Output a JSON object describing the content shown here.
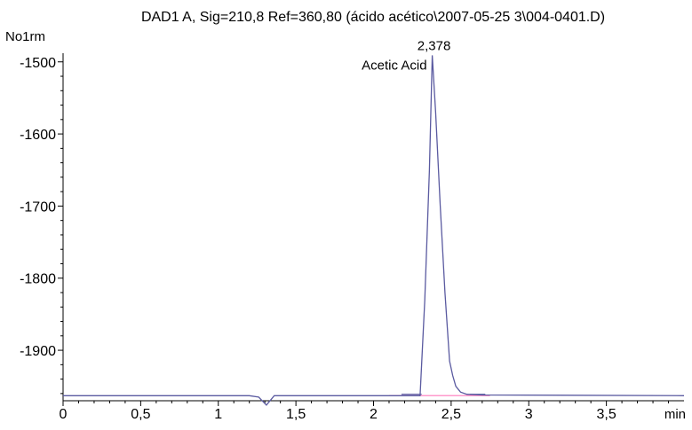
{
  "chart_data": {
    "type": "line",
    "title": "DAD1 A, Sig=210,8 Ref=360,80 (ácido acético\\2007-05-25 3\\004-0401.D)",
    "ylabel": "No1rm",
    "xlabel": "min",
    "xlim": [
      0,
      4.0
    ],
    "ylim": [
      -1970,
      -1488
    ],
    "x_ticks": [
      {
        "value": 0,
        "label": "0"
      },
      {
        "value": 0.5,
        "label": "0,5"
      },
      {
        "value": 1,
        "label": "1"
      },
      {
        "value": 1.5,
        "label": "1,5"
      },
      {
        "value": 2,
        "label": "2"
      },
      {
        "value": 2.5,
        "label": "2,5"
      },
      {
        "value": 3,
        "label": "3"
      },
      {
        "value": 3.5,
        "label": "3,5"
      }
    ],
    "y_ticks": [
      {
        "value": -1500,
        "label": "-1500"
      },
      {
        "value": -1600,
        "label": "-1600"
      },
      {
        "value": -1700,
        "label": "-1700"
      },
      {
        "value": -1800,
        "label": "-1800"
      },
      {
        "value": -1900,
        "label": "-1900"
      }
    ],
    "grid": false,
    "series": [
      {
        "color": "#5a5aa0",
        "x": [
          0,
          1.2,
          1.26,
          1.31,
          1.36,
          2.3,
          2.33,
          2.36,
          2.378,
          2.4,
          2.43,
          2.46,
          2.49,
          2.51,
          2.53,
          2.56,
          2.6,
          2.7,
          4.0
        ],
        "y": [
          -1963,
          -1963,
          -1965,
          -1976,
          -1963,
          -1963,
          -1830,
          -1650,
          -1491,
          -1570,
          -1700,
          -1820,
          -1915,
          -1935,
          -1950,
          -1958,
          -1961,
          -1962,
          -1963
        ]
      }
    ],
    "baseline": {
      "color": "#ff99cc",
      "x": [
        2.1,
        2.75
      ],
      "y": [
        -1963,
        -1963
      ]
    },
    "integration_marks": {
      "color": "#5a5aa0",
      "start": {
        "x": [
          2.18,
          2.31
        ],
        "y": [
          -1961,
          -1961
        ]
      },
      "end": {
        "x": [
          2.62,
          2.72
        ],
        "y": [
          -1961,
          -1961
        ]
      }
    },
    "peak_annotations": [
      {
        "x": 2.378,
        "y": -1491,
        "retention_label": "2,378",
        "compound_label": "Acetic Acid"
      }
    ]
  }
}
